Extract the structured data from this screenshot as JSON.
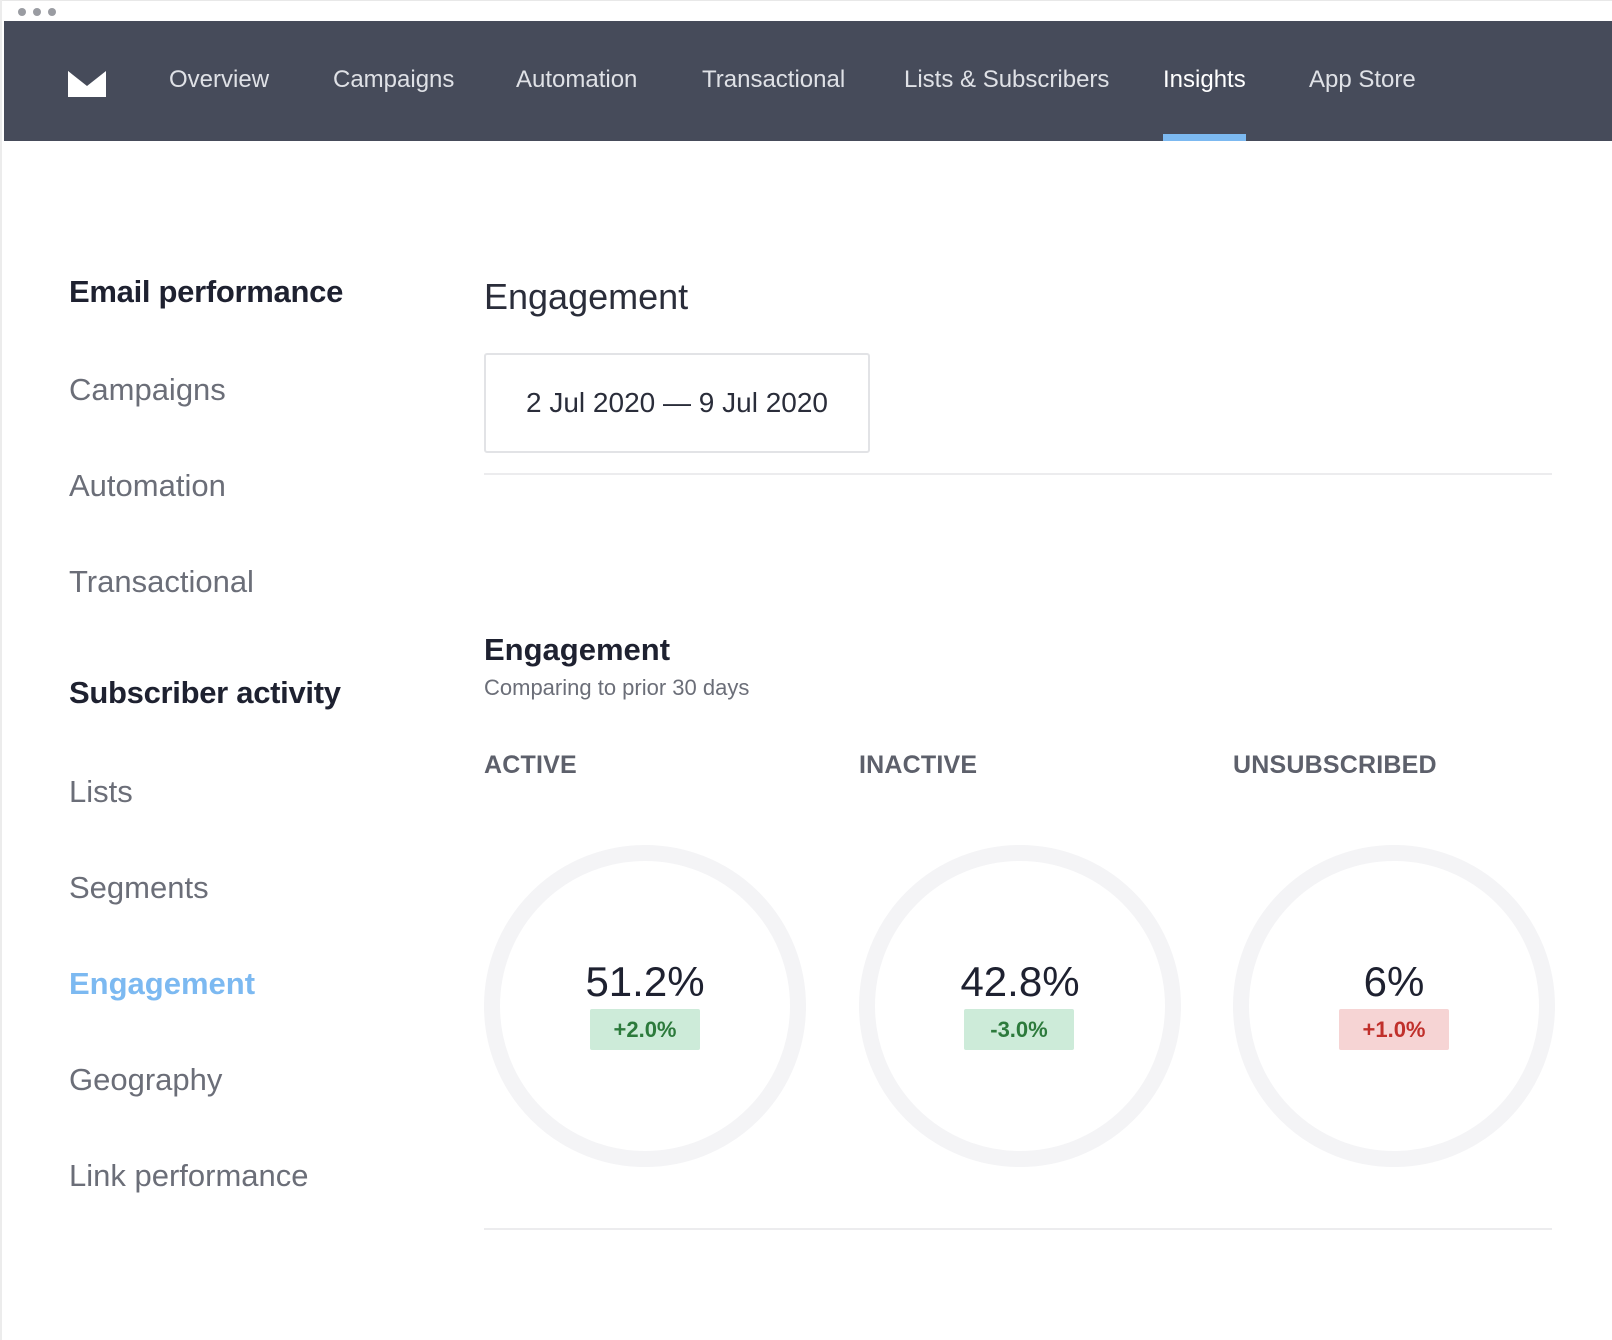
{
  "topnav": {
    "logo_icon": "envelope-logo-icon",
    "items": [
      {
        "label": "Overview"
      },
      {
        "label": "Campaigns"
      },
      {
        "label": "Automation"
      },
      {
        "label": "Transactional"
      },
      {
        "label": "Lists & Subscribers"
      },
      {
        "label": "Insights",
        "active": true
      },
      {
        "label": "App Store"
      }
    ],
    "colors": {
      "background": "#464b5a",
      "active_underline": "#7cb9f1"
    }
  },
  "sidebar": {
    "email_performance_heading": "Email performance",
    "email_links": [
      "Campaigns",
      "Automation",
      "Transactional"
    ],
    "subscriber_activity_heading": "Subscriber activity",
    "subscriber_links": [
      "Lists",
      "Segments",
      "Engagement",
      "Geography",
      "Link performance"
    ],
    "active_link": "Engagement",
    "active_color": "#7cb9f1"
  },
  "main": {
    "page_title": "Engagement",
    "date_range": "2 Jul 2020 — 9 Jul 2020",
    "section_title": "Engagement",
    "section_subtitle": "Comparing to prior 30 days",
    "metrics": [
      {
        "label": "ACTIVE",
        "value": "51.2%",
        "change": "+2.0%",
        "status": "good"
      },
      {
        "label": "INACTIVE",
        "value": "42.8%",
        "change": "-3.0%",
        "status": "good"
      },
      {
        "label": "UNSUBSCRIBED",
        "value": "6%",
        "change": "+1.0%",
        "status": "bad"
      }
    ],
    "colors": {
      "good_badge_bg": "#cdebd9",
      "good_badge_text": "#2c7a3c",
      "bad_badge_bg": "#f6d4d4",
      "bad_badge_text": "#c0302b"
    }
  }
}
